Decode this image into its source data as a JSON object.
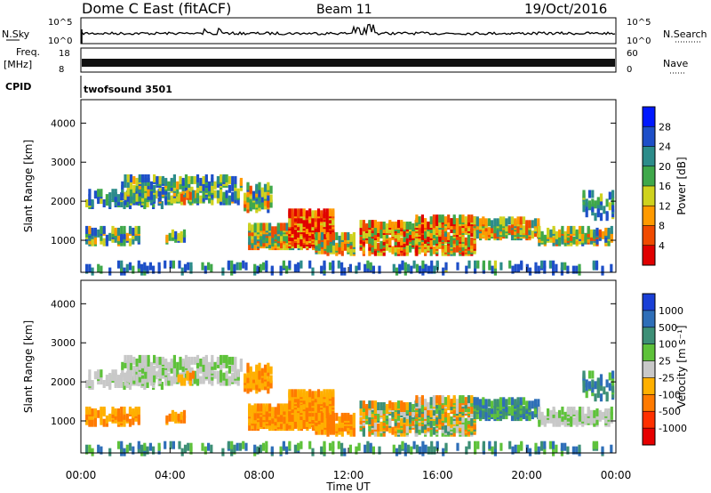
{
  "header": {
    "title": "Dome C East (fitACF)",
    "beam": "Beam 11",
    "date": "19/Oct/2016"
  },
  "status_panels": {
    "nsky_label": "N.Sky",
    "nsky_ticks": [
      "10^5",
      "10^0"
    ],
    "nsearch_label": "N.Search",
    "freq_label_1": "Freq.",
    "freq_label_2": "[MHz]",
    "freq_ticks": [
      "18",
      "8"
    ],
    "nave_ticks": [
      "60",
      "0"
    ],
    "nave_label": "Nave",
    "cpid_label": "CPID",
    "cpid_value": "twofsound 3501"
  },
  "chart_data": [
    {
      "type": "heatmap",
      "panel": "power",
      "ylabel": "Slant Range [km]",
      "ylim": [
        180,
        4600
      ],
      "yticks": [
        "1000",
        "2000",
        "3000",
        "4000"
      ],
      "xlim": [
        0,
        24
      ],
      "colorbar_label": "Power [dB]",
      "colorbar_ticks": [
        "4",
        "8",
        "12",
        "16",
        "20",
        "24",
        "28"
      ],
      "colorbar_colors": [
        "#0018ff",
        "#1e4fc8",
        "#2c8c8a",
        "#3fa84a",
        "#cfd21e",
        "#ff9a00",
        "#f04a00",
        "#e00000"
      ]
    },
    {
      "type": "heatmap",
      "panel": "velocity",
      "ylabel": "Slant Range [km]",
      "ylim": [
        180,
        4600
      ],
      "yticks": [
        "1000",
        "2000",
        "3000",
        "4000"
      ],
      "xlim": [
        0,
        24
      ],
      "xticks": [
        "00:00",
        "04:00",
        "08:00",
        "12:00",
        "16:00",
        "20:00",
        "00:00"
      ],
      "xlabel": "Time UT",
      "colorbar_label": "Velocity [m s⁻¹]",
      "colorbar_ticks": [
        "1000",
        "500",
        "100",
        "25",
        "-25",
        "-100",
        "-500",
        "-1000"
      ],
      "colorbar_colors": [
        "#1a3fd6",
        "#2e6eb8",
        "#3d8f76",
        "#5ec23a",
        "#c8c8c8",
        "#ffb000",
        "#ff7a00",
        "#ff3000",
        "#e60000"
      ]
    }
  ]
}
